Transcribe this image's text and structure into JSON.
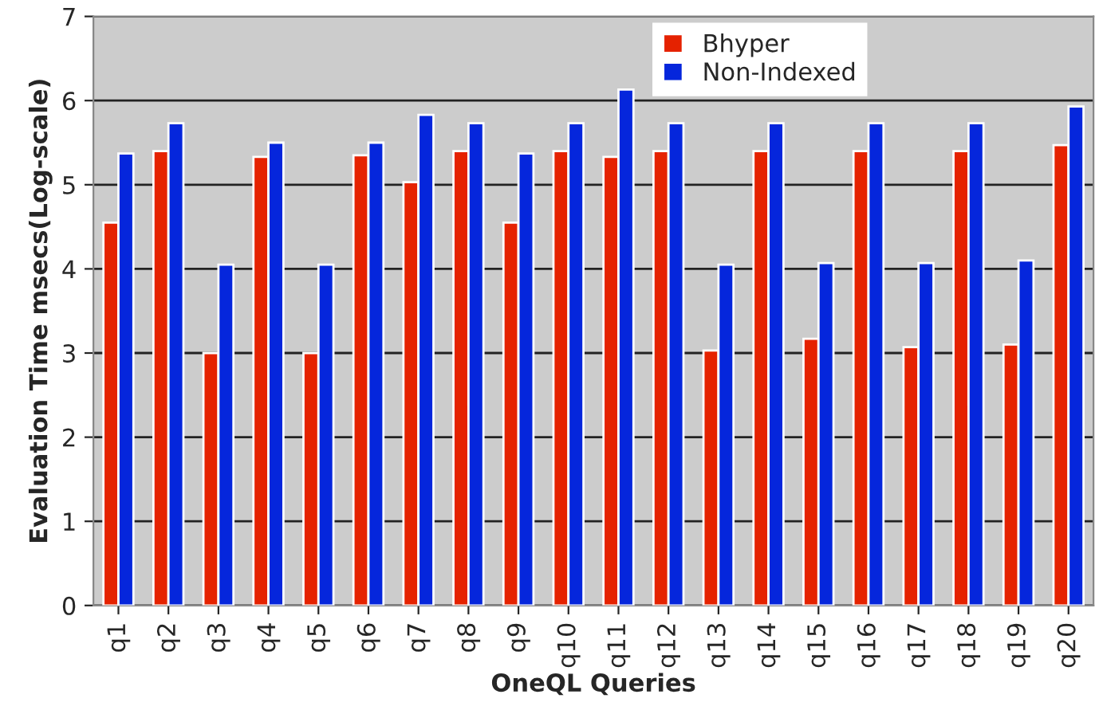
{
  "chart_data": {
    "type": "bar",
    "xlabel": "OneQL Queries",
    "ylabel": "Evaluation Time msecs(Log-scale)",
    "categories": [
      "q1",
      "q2",
      "q3",
      "q4",
      "q5",
      "q6",
      "q7",
      "q8",
      "q9",
      "q10",
      "q11",
      "q12",
      "q13",
      "q14",
      "q15",
      "q16",
      "q17",
      "q18",
      "q19",
      "q20"
    ],
    "series": [
      {
        "name": "Bhyper",
        "color": "#e52200",
        "values": [
          4.55,
          5.4,
          3.0,
          5.33,
          3.0,
          5.35,
          5.03,
          5.4,
          4.55,
          5.4,
          5.33,
          5.4,
          3.03,
          5.4,
          3.17,
          5.4,
          3.07,
          5.4,
          3.1,
          5.47
        ]
      },
      {
        "name": "Non-Indexed",
        "color": "#0526dc",
        "values": [
          5.37,
          5.73,
          4.05,
          5.5,
          4.05,
          5.5,
          5.83,
          5.73,
          5.37,
          5.73,
          6.13,
          5.73,
          4.05,
          5.73,
          4.07,
          5.73,
          4.07,
          5.73,
          4.1,
          5.93
        ]
      }
    ],
    "ylim": [
      0,
      7
    ],
    "yticks": [
      0,
      1,
      2,
      3,
      4,
      5,
      6,
      7
    ],
    "grid": "y",
    "legend": "top right"
  }
}
